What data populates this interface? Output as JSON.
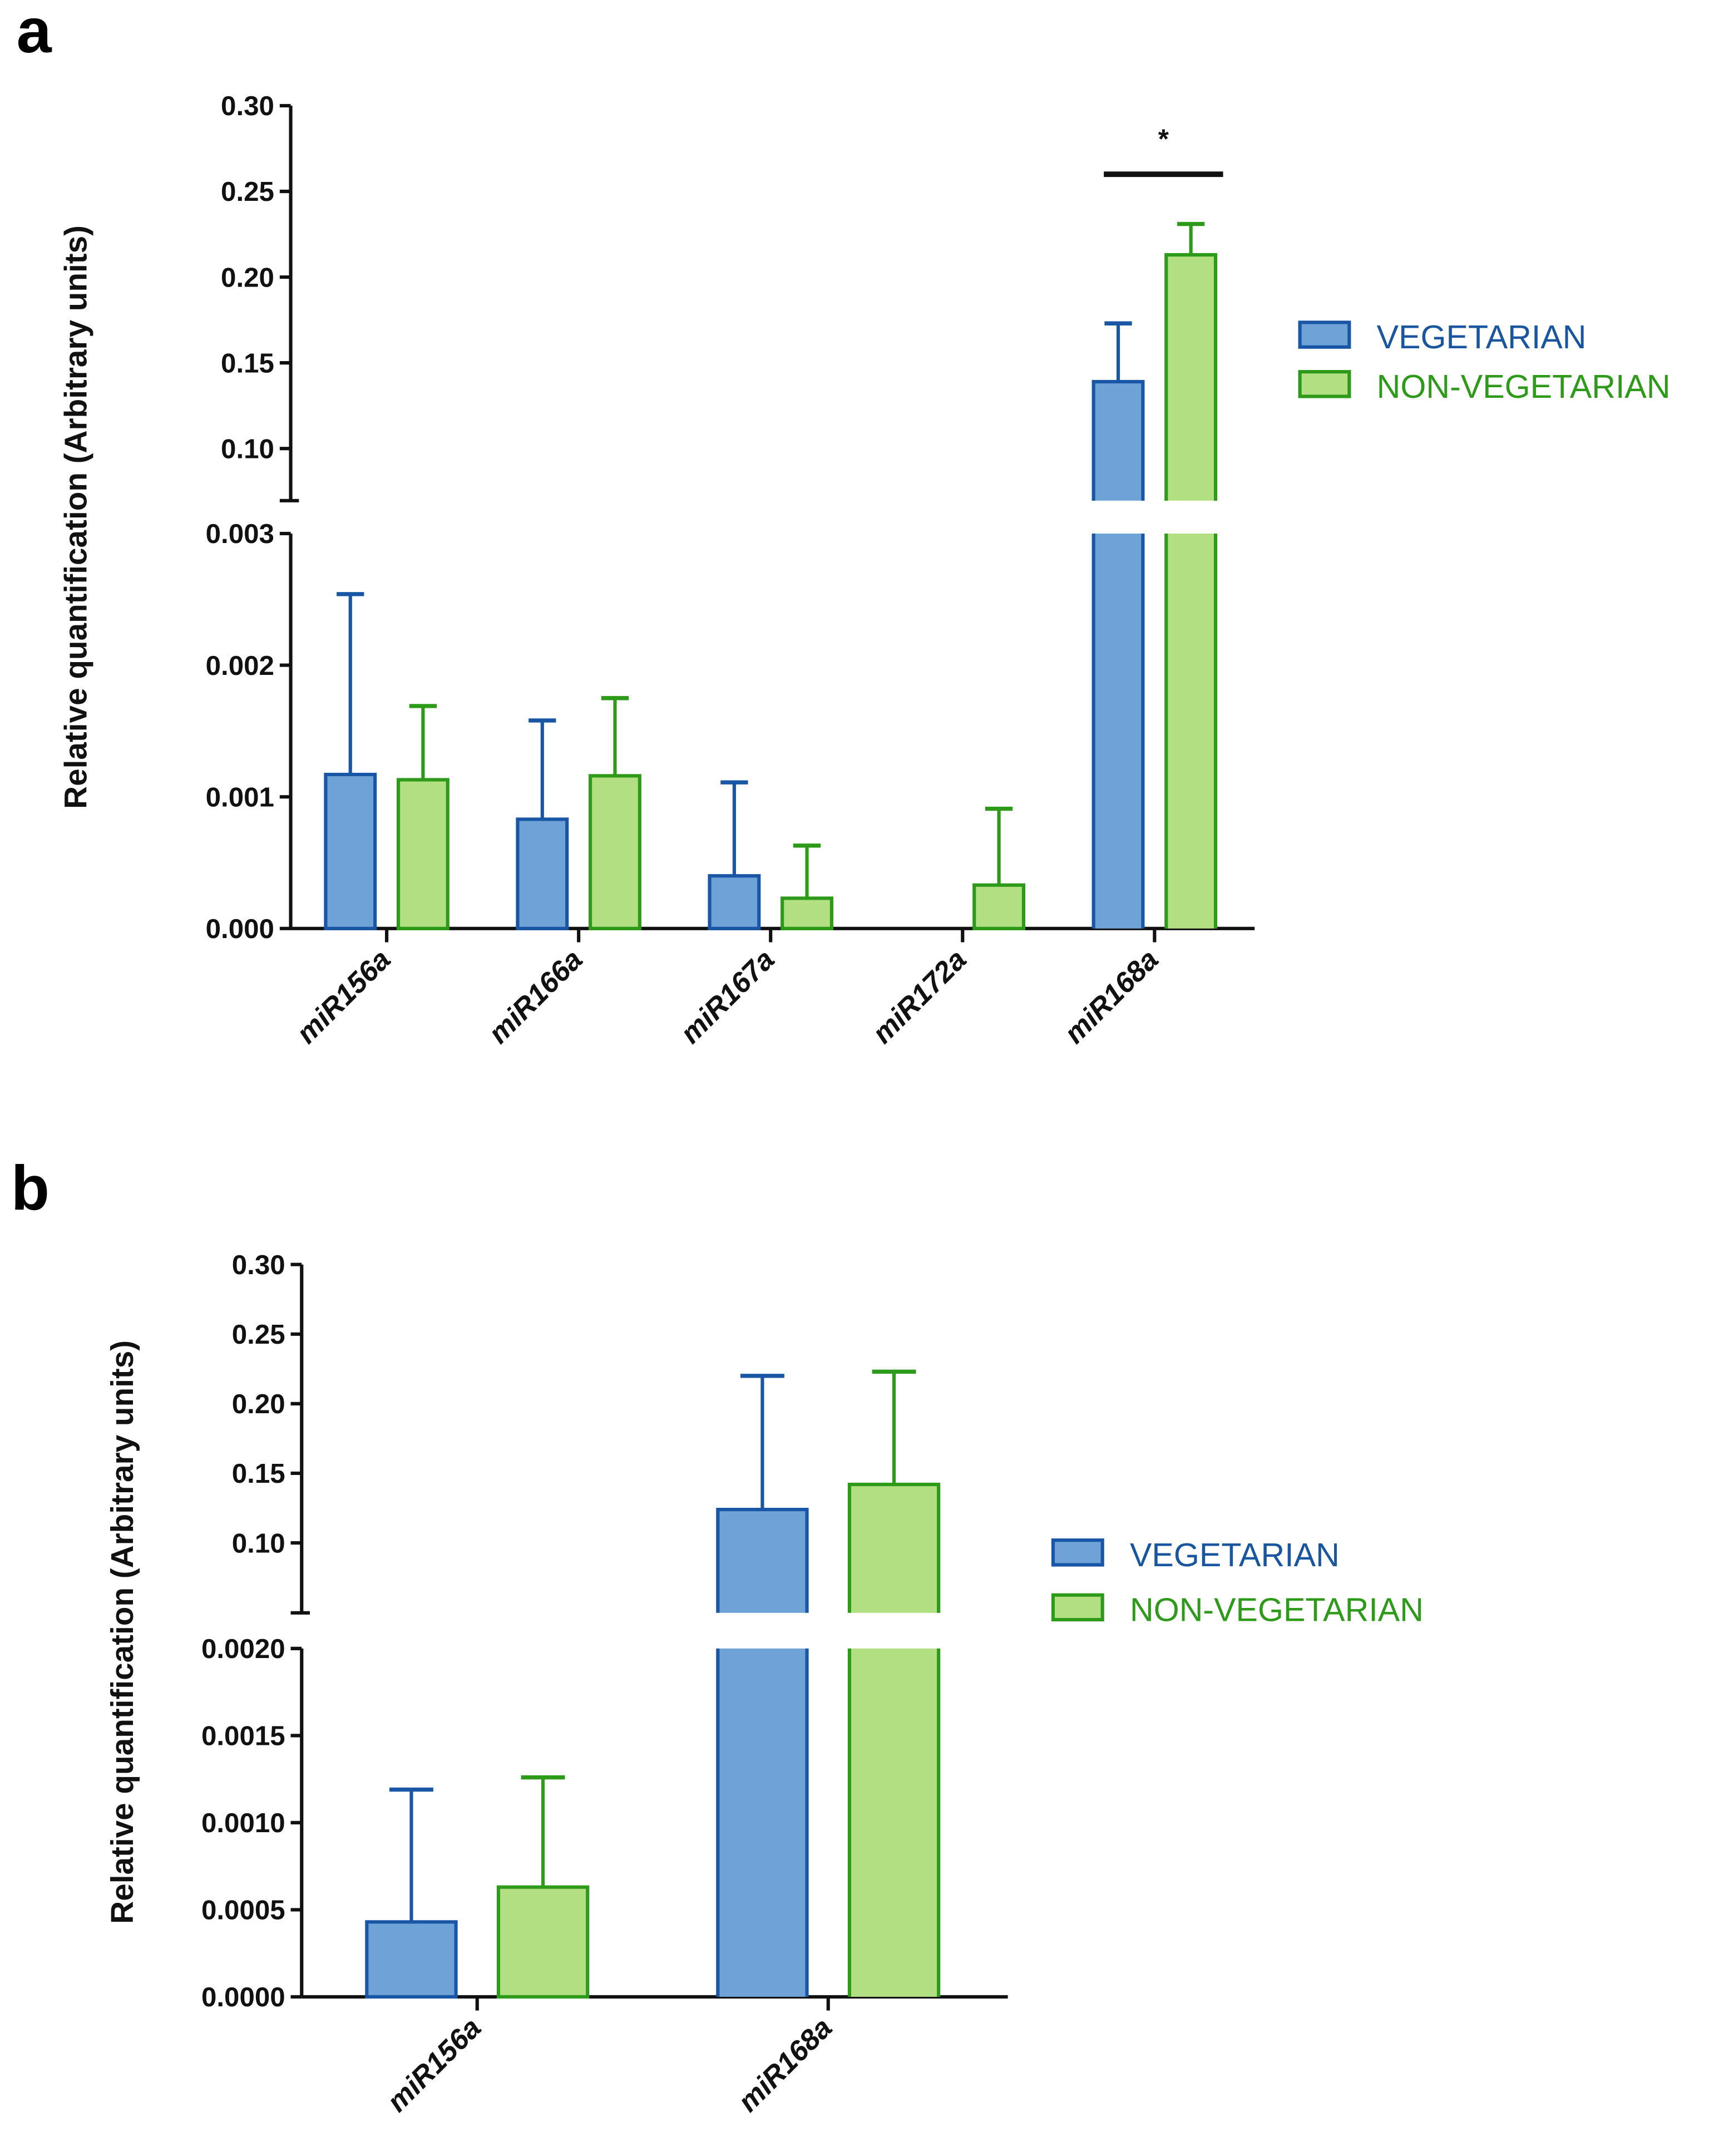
{
  "colors": {
    "vegetarian_fill": "#6fa3d8",
    "vegetarian_stroke": "#1957a6",
    "vegetarian_text": "#1a56a0",
    "nonveg_fill": "#b3df83",
    "nonveg_stroke": "#2e9a1a",
    "nonveg_text": "#2e9a1a"
  },
  "chart_data": [
    {
      "panel_label": "a",
      "type": "bar",
      "ylabel": "Relative quantification (Arbitrary units)",
      "y_axis_break": true,
      "ylim_lower": [
        0,
        0.003
      ],
      "ylim_upper": [
        0.07,
        0.3
      ],
      "yticks_lower": [
        "0.000",
        "0.001",
        "0.002",
        "0.003"
      ],
      "yticks_upper": [
        "0.10",
        "0.15",
        "0.20",
        "0.25",
        "0.30"
      ],
      "categories": [
        "miR156a",
        "miR166a",
        "miR167a",
        "miR172a",
        "miR168a"
      ],
      "legend": [
        "VEGETARIAN",
        "NON-VEGETARIAN"
      ],
      "legend_position": "right",
      "series": [
        {
          "name": "VEGETARIAN",
          "values": [
            0.00117,
            0.00083,
            0.0004,
            0.0,
            0.139
          ],
          "error_upper": [
            0.00254,
            0.00158,
            0.00111,
            null,
            0.173
          ]
        },
        {
          "name": "NON-VEGETARIAN",
          "values": [
            0.00113,
            0.00116,
            0.00023,
            0.00033,
            0.213
          ],
          "error_upper": [
            0.00169,
            0.00175,
            0.00063,
            0.00091,
            0.231
          ]
        }
      ],
      "annotations": [
        {
          "category": "miR168a",
          "text": "*"
        }
      ]
    },
    {
      "panel_label": "b",
      "type": "bar",
      "ylabel": "Relative quantification (Arbitrary units)",
      "y_axis_break": true,
      "ylim_lower": [
        0,
        0.002
      ],
      "ylim_upper": [
        0.075,
        0.3
      ],
      "yticks_lower": [
        "0.0000",
        "0.0005",
        "0.0010",
        "0.0015",
        "0.0020"
      ],
      "yticks_upper": [
        "0.10",
        "0.15",
        "0.20",
        "0.25",
        "0.30"
      ],
      "categories": [
        "miR156a",
        "miR168a"
      ],
      "legend": [
        "VEGETARIAN",
        "NON-VEGETARIAN"
      ],
      "legend_position": "right",
      "series": [
        {
          "name": "VEGETARIAN",
          "values": [
            0.00043,
            0.124
          ],
          "error_upper": [
            0.00119,
            0.22
          ]
        },
        {
          "name": "NON-VEGETARIAN",
          "values": [
            0.00063,
            0.142
          ],
          "error_upper": [
            0.00126,
            0.223
          ]
        }
      ],
      "annotations": []
    }
  ]
}
